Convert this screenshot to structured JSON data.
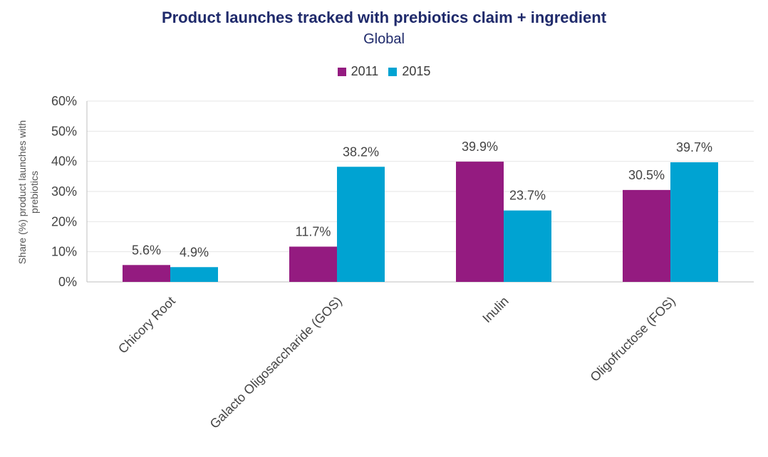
{
  "chart_data": {
    "type": "bar",
    "title": "Product launches tracked with prebiotics claim + ingredient",
    "subtitle": "Global",
    "xlabel": "",
    "ylabel_lines": [
      "Share (%) product launches with",
      "prebiotics"
    ],
    "ylim": [
      0,
      60
    ],
    "yticks": [
      0,
      10,
      20,
      30,
      40,
      50,
      60
    ],
    "ytick_labels": [
      "0%",
      "10%",
      "20%",
      "30%",
      "40%",
      "50%",
      "60%"
    ],
    "categories": [
      "Chicory Root",
      "Galacto Oligosaccharide (GOS)",
      "Inulin",
      "Oligofructose (FOS)"
    ],
    "series": [
      {
        "name": "2011",
        "color": "#941b80",
        "values": [
          5.6,
          11.7,
          39.9,
          30.5
        ],
        "labels": [
          "5.6%",
          "11.7%",
          "39.9%",
          "30.5%"
        ]
      },
      {
        "name": "2015",
        "color": "#00a3d2",
        "values": [
          4.9,
          38.2,
          23.7,
          39.7
        ],
        "labels": [
          "4.9%",
          "38.2%",
          "23.7%",
          "39.7%"
        ]
      }
    ],
    "grid": true,
    "legend_position": "top-center"
  }
}
